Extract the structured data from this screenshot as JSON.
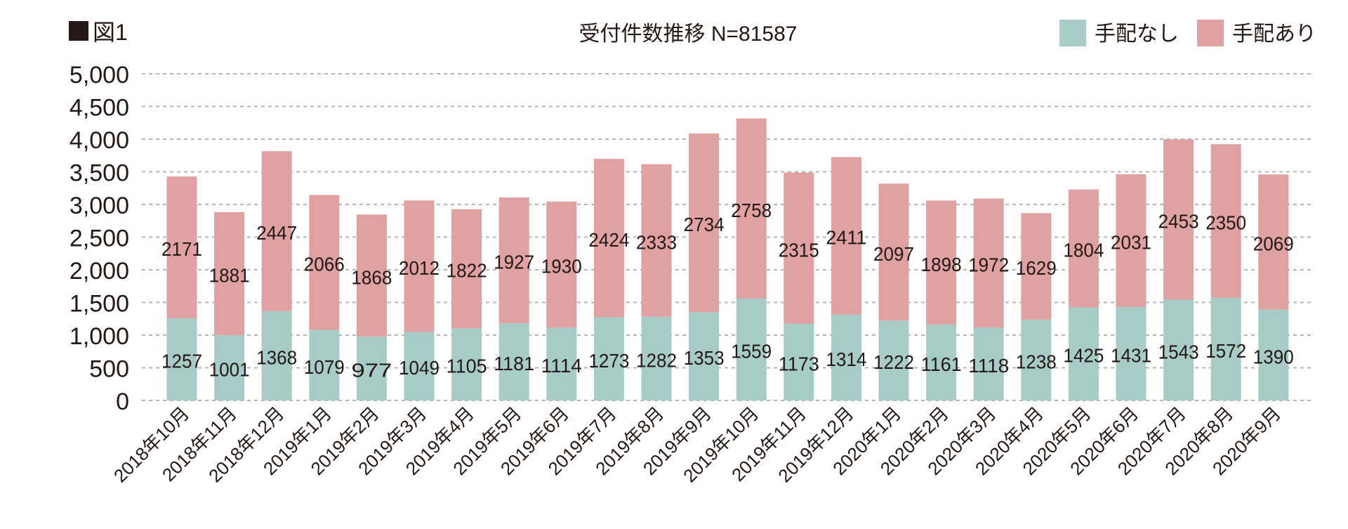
{
  "figure_label": "図1",
  "chart_data": {
    "type": "bar",
    "stacked": true,
    "title": "受付件数推移 N=81587",
    "xlabel": "",
    "ylabel": "",
    "ylim": [
      0,
      5000
    ],
    "yticks": [
      0,
      500,
      1000,
      1500,
      2000,
      2500,
      3000,
      3500,
      4000,
      4500,
      5000
    ],
    "ytick_labels": [
      "0",
      "500",
      "1,000",
      "1,500",
      "2,000",
      "2,500",
      "3,000",
      "3,500",
      "4,000",
      "4,500",
      "5,000"
    ],
    "grid": true,
    "legend_position": "top-right",
    "categories": [
      "2018年10月",
      "2018年11月",
      "2018年12月",
      "2019年1月",
      "2019年2月",
      "2019年3月",
      "2019年4月",
      "2019年5月",
      "2019年6月",
      "2019年7月",
      "2019年8月",
      "2019年9月",
      "2019年10月",
      "2019年11月",
      "2019年12月",
      "2020年1月",
      "2020年2月",
      "2020年3月",
      "2020年4月",
      "2020年5月",
      "2020年6月",
      "2020年7月",
      "2020年8月",
      "2020年9月"
    ],
    "series": [
      {
        "name": "手配なし",
        "color": "#a7ccc7",
        "values": [
          1257,
          1001,
          1368,
          1079,
          977,
          1049,
          1105,
          1181,
          1114,
          1273,
          1282,
          1353,
          1559,
          1173,
          1314,
          1222,
          1161,
          1118,
          1238,
          1425,
          1431,
          1543,
          1572,
          1390
        ]
      },
      {
        "name": "手配あり",
        "color": "#dfa1a2",
        "values": [
          2171,
          1881,
          2447,
          2066,
          1868,
          2012,
          1822,
          1927,
          1930,
          2424,
          2333,
          2734,
          2758,
          2315,
          2411,
          2097,
          1898,
          1972,
          1629,
          1804,
          2031,
          2453,
          2350,
          2069
        ]
      }
    ]
  }
}
